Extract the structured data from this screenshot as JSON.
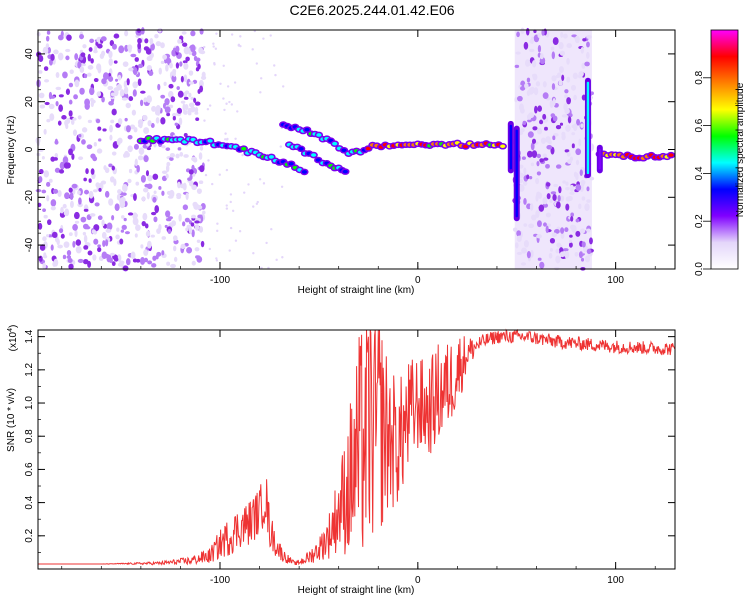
{
  "figure": {
    "title": "C2E6.2025.244.01.42.E06"
  },
  "chart_data": [
    {
      "type": "heatmap",
      "xlabel": "Height of straight line (km)",
      "ylabel": "Frequency (Hz)",
      "xlim": [
        -192,
        130
      ],
      "ylim": [
        -50,
        50
      ],
      "xticks": [
        -100,
        0,
        100
      ],
      "yticks": [
        -40,
        -20,
        0,
        20,
        40
      ],
      "colorbar": {
        "label": "Normalized spectral amplitude",
        "range": [
          0.0,
          1.0
        ],
        "ticks": [
          0.0,
          0.2,
          0.4,
          0.6,
          0.8
        ],
        "tick_labels": [
          "0.0",
          "0.2",
          "0.4",
          "0.6",
          "0.8"
        ],
        "colors": [
          "#ffffff",
          "#e4d6fa",
          "#8000ff",
          "#0000ff",
          "#00ffff",
          "#00ff00",
          "#ffff00",
          "#ff8000",
          "#ff0000",
          "#ff00ff"
        ]
      },
      "noise_regions": [
        {
          "x": [
            -192,
            -108
          ],
          "y": [
            -50,
            50
          ],
          "amplitude": 0.2
        },
        {
          "x": [
            49,
            88
          ],
          "y": [
            -50,
            50
          ],
          "amplitude": 0.2
        }
      ],
      "ridges": [
        {
          "name": "main",
          "points": [
            [
              -140,
              4
            ],
            [
              -120,
              4
            ],
            [
              -105,
              3
            ],
            [
              -90,
              0
            ],
            [
              -80,
              -2
            ],
            [
              -70,
              -5
            ],
            [
              -62,
              -7
            ],
            [
              -55,
              -10
            ]
          ],
          "amplitude": 0.55
        },
        {
          "name": "lower",
          "points": [
            [
              -65,
              2
            ],
            [
              -55,
              -2
            ],
            [
              -48,
              -5
            ],
            [
              -40,
              -8
            ],
            [
              -35,
              -10
            ]
          ],
          "amplitude": 0.5
        },
        {
          "name": "upper",
          "points": [
            [
              -68,
              10
            ],
            [
              -60,
              9
            ],
            [
              -50,
              6
            ],
            [
              -42,
              2
            ],
            [
              -35,
              -2
            ],
            [
              -25,
              0
            ]
          ],
          "amplitude": 0.5
        },
        {
          "name": "center",
          "points": [
            [
              -25,
              1
            ],
            [
              -10,
              2
            ],
            [
              0,
              2
            ],
            [
              20,
              2
            ],
            [
              45,
              2
            ]
          ],
          "amplitude": 0.85
        },
        {
          "name": "right",
          "points": [
            [
              92,
              -2
            ],
            [
              100,
              -2
            ],
            [
              110,
              -3
            ],
            [
              120,
              -3
            ],
            [
              130,
              -3
            ]
          ],
          "amplitude": 0.95
        }
      ],
      "vertical_features": [
        {
          "x": 47,
          "y": [
            -10,
            12
          ],
          "amplitude": 0.4
        },
        {
          "x": 50,
          "y": [
            -30,
            10
          ],
          "amplitude": 0.35
        },
        {
          "x": 86,
          "y": [
            -12,
            30
          ],
          "amplitude": 0.45
        },
        {
          "x": 92,
          "y": [
            -10,
            2
          ],
          "amplitude": 0.3
        }
      ]
    },
    {
      "type": "line",
      "xlabel": "Height of straight line (km)",
      "ylabel": "SNR (10 * v/v)",
      "scale_label": "(x10",
      "scale_exponent": "4",
      "xlim": [
        -192,
        130
      ],
      "ylim": [
        0,
        14400
      ],
      "xticks": [
        -100,
        0,
        100
      ],
      "yticks": [
        0.2,
        0.4,
        0.6,
        0.8,
        1.0,
        1.2,
        1.4
      ],
      "series": [
        {
          "name": "SNR",
          "color": "#ee3333",
          "x": [
            -192,
            -160,
            -130,
            -115,
            -105,
            -100,
            -95,
            -90,
            -85,
            -80,
            -77,
            -75,
            -72,
            -68,
            -62,
            -55,
            -50,
            -45,
            -40,
            -35,
            -30,
            -25,
            -20,
            -15,
            -10,
            -5,
            0,
            5,
            10,
            15,
            20,
            25,
            30,
            35,
            40,
            45,
            50,
            55,
            60,
            65,
            70,
            80,
            90,
            100,
            110,
            120,
            130
          ],
          "y": [
            300,
            300,
            350,
            500,
            800,
            1500,
            2000,
            2500,
            2800,
            3500,
            4500,
            2500,
            1500,
            800,
            300,
            700,
            1200,
            2000,
            3500,
            5000,
            7000,
            8500,
            9000,
            8000,
            7500,
            9000,
            10000,
            9500,
            10500,
            11000,
            12000,
            13000,
            13500,
            13800,
            14000,
            14000,
            14000,
            14000,
            13900,
            13800,
            13700,
            13600,
            13500,
            13400,
            13350,
            13300,
            13250
          ],
          "noise": [
            0,
            0,
            0.3,
            0.5,
            0.6,
            0.6,
            0.6,
            0.5,
            0.5,
            0.4,
            0.4,
            0.5,
            0.5,
            0.5,
            0.4,
            0.6,
            0.6,
            0.7,
            0.7,
            0.9,
            1.0,
            0.9,
            0.8,
            0.6,
            0.5,
            0.4,
            0.3,
            0.3,
            0.3,
            0.25,
            0.2,
            0.08,
            0.04,
            0.03,
            0.03,
            0.03,
            0.03,
            0.03,
            0.03,
            0.03,
            0.03,
            0.03,
            0.03,
            0.03,
            0.03,
            0.03,
            0.03
          ]
        }
      ]
    }
  ]
}
